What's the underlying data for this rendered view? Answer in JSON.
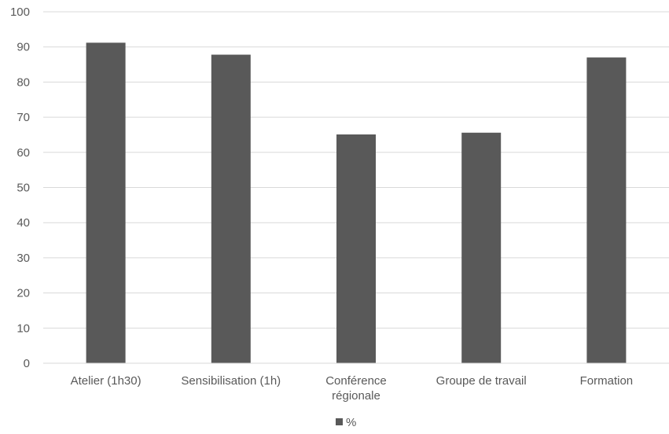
{
  "chart_data": {
    "type": "bar",
    "categories": [
      [
        "Atelier (1h30)"
      ],
      [
        "Sensibilisation (1h)"
      ],
      [
        "Conférence",
        "régionale"
      ],
      [
        "Groupe de travail"
      ],
      [
        "Formation"
      ]
    ],
    "series": [
      {
        "name": "%",
        "values": [
          91.2,
          87.8,
          65.1,
          65.6,
          87.0
        ],
        "color": "#595959"
      }
    ],
    "title": "",
    "xlabel": "",
    "ylabel": "",
    "ylim": [
      0,
      100
    ],
    "yticks": [
      0,
      10,
      20,
      30,
      40,
      50,
      60,
      70,
      80,
      90,
      100
    ],
    "grid": true,
    "legend_position": "bottom"
  }
}
